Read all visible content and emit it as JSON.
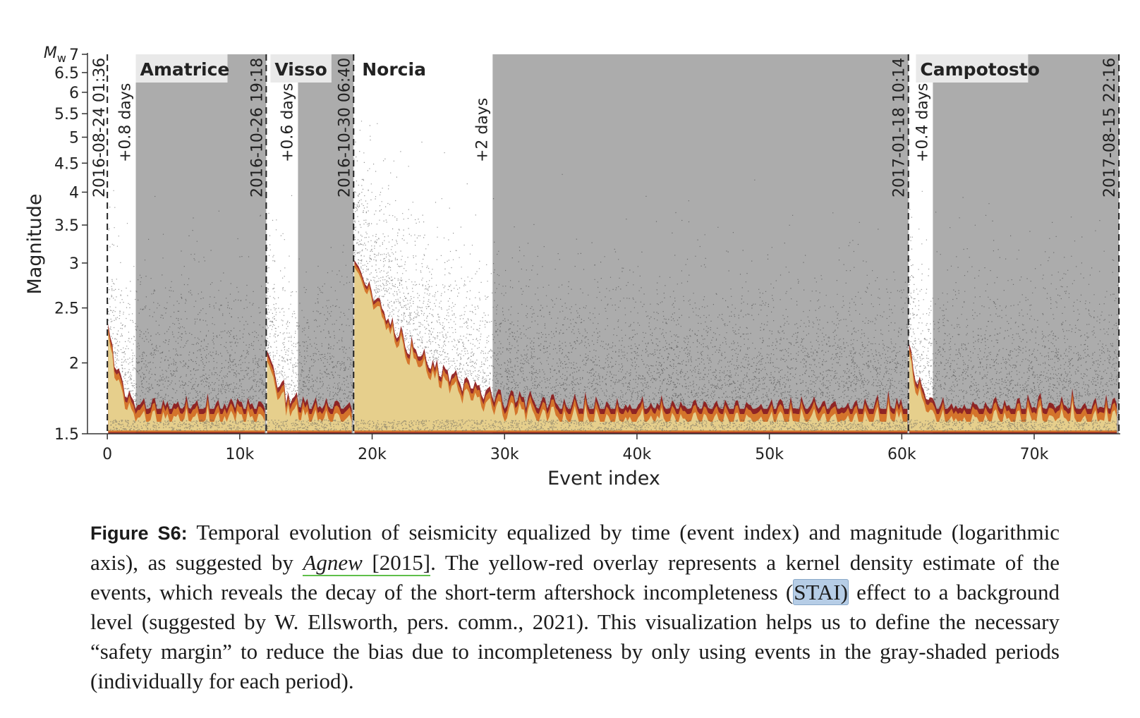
{
  "chart_data": {
    "type": "scatter",
    "title": "",
    "xlabel": "Event index",
    "ylabel": "Magnitude",
    "ylog": true,
    "xlim": [
      -1500,
      76500
    ],
    "ylim": [
      1.5,
      7
    ],
    "x_ticks": [
      0,
      10000,
      20000,
      30000,
      40000,
      50000,
      60000,
      70000
    ],
    "x_tick_labels": [
      "0",
      "10k",
      "20k",
      "30k",
      "40k",
      "50k",
      "60k",
      "70k"
    ],
    "y_ticks": [
      1.5,
      2,
      2.5,
      3,
      3.5,
      4,
      4.5,
      5,
      5.5,
      6,
      6.5,
      7
    ],
    "y_tick_labels": [
      "1.5",
      "2",
      "2.5",
      "3",
      "3.5",
      "4",
      "4.5",
      "5",
      "5.5",
      "6",
      "6.5",
      "7"
    ],
    "y_top_label": "M",
    "y_top_label_sub": "w",
    "periods": [
      {
        "name": "Amatrice",
        "start_index": 0,
        "shaded_start_index": 2150,
        "end_index": 12000,
        "start_label": "2016-08-24 01:36",
        "end_label": "2016-10-26 19:18",
        "margin_label": "+0.8 days"
      },
      {
        "name": "Visso",
        "start_index": 12000,
        "shaded_start_index": 14400,
        "end_index": 18600,
        "start_label": "",
        "end_label": "2016-10-30 06:40",
        "margin_label": "+0.6 days"
      },
      {
        "name": "Norcia",
        "start_index": 18600,
        "shaded_start_index": 29100,
        "end_index": 60500,
        "start_label": "",
        "end_label": "2017-01-18 10:14",
        "margin_label": "+2 days"
      },
      {
        "name": "Campotosto",
        "start_index": 60500,
        "shaded_start_index": 62350,
        "end_index": 76400,
        "start_label": "",
        "end_label": "2017-08-15 22:16",
        "margin_label": "+0.4 days"
      }
    ],
    "colors": {
      "shaded_period": "#acacac",
      "events": "#3c3c3c",
      "kde_low": "#e9df9e",
      "kde_mid": "#dc7d2c",
      "kde_high": "#8c1616"
    }
  },
  "caption": {
    "label": "Figure S6:",
    "text_1": " Temporal evolution of seismicity equalized by time (event index) and magnitude (logarithmic axis), as suggested by ",
    "cite_author": "Agnew",
    "cite_year": " [2015]",
    "text_2": ". The yellow-red overlay represents a kernel density estimate of the events, which reveals the decay of the short-term aftershock incompleteness (",
    "highlight": "STAI)",
    "text_3": " effect to a background level (suggested by W. Ellsworth, pers. comm., 2021). This visualization helps us to define the necessary “safety margin” to reduce the bias due to incompleteness by only using events in the gray-shaded periods (individually for each period)."
  }
}
